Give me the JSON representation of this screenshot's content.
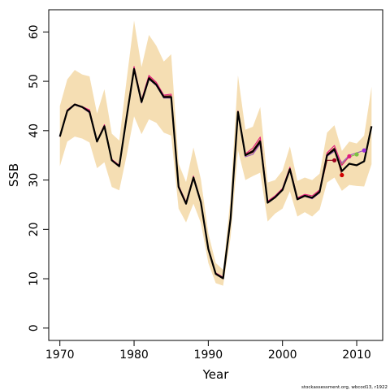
{
  "chart_data": {
    "type": "line",
    "title": "",
    "xlabel": "Year",
    "ylabel": "SSB",
    "footnote": "stockassessment.org, wbcod13, r1922",
    "xlim": [
      1968.5,
      2013.5
    ],
    "ylim": [
      -2.5,
      64.5
    ],
    "x_ticks": [
      1970,
      1980,
      1990,
      2000,
      2010
    ],
    "y_ticks": [
      0,
      10,
      20,
      30,
      40,
      50,
      60
    ],
    "years": [
      1970,
      1971,
      1972,
      1973,
      1974,
      1975,
      1976,
      1977,
      1978,
      1979,
      1980,
      1981,
      1982,
      1983,
      1984,
      1985,
      1986,
      1987,
      1988,
      1989,
      1990,
      1991,
      1992,
      1993,
      1994,
      1995,
      1996,
      1997,
      1998,
      1999,
      2000,
      2001,
      2002,
      2003,
      2004,
      2005,
      2006,
      2007,
      2008,
      2009,
      2010,
      2011,
      2012
    ],
    "series": [
      {
        "name": "SSB",
        "color": "#000000",
        "values": [
          38.8,
          44.0,
          45.3,
          44.8,
          43.8,
          37.8,
          40.9,
          34.0,
          32.8,
          42.8,
          52.5,
          45.8,
          50.6,
          49.3,
          46.8,
          46.8,
          28.6,
          25.2,
          30.5,
          25.5,
          16.0,
          11.0,
          10.1,
          22.2,
          43.8,
          35.0,
          35.8,
          37.8,
          25.4,
          26.5,
          28.0,
          32.2,
          26.1,
          26.8,
          26.4,
          27.6,
          35.0,
          36.2,
          31.8,
          33.3,
          33.0,
          33.8,
          40.9
        ]
      },
      {
        "name": "",
        "color": "#e0197d",
        "end_point_color": "#e0197d",
        "values": [
          38.9,
          44.2,
          45.4,
          44.9,
          44.2,
          37.9,
          41.2,
          34.2,
          33.0,
          43.0,
          53.0,
          46.2,
          51.2,
          49.8,
          47.2,
          47.4,
          28.9,
          25.5,
          30.8,
          25.7,
          16.2,
          11.2,
          10.3,
          22.4,
          44.0,
          35.3,
          36.5,
          38.7,
          25.7,
          26.8,
          28.3,
          32.6,
          26.4,
          27.1,
          26.8,
          28.0,
          35.5,
          37.0,
          33.0,
          34.8,
          null,
          null,
          null
        ]
      },
      {
        "name": "",
        "color": "#8b1a1a",
        "end_point_color": "#d00000",
        "values": [
          38.8,
          44.1,
          45.3,
          44.8,
          44.0,
          37.8,
          41.0,
          34.1,
          32.9,
          42.9,
          52.8,
          46.0,
          50.9,
          49.5,
          47.0,
          47.1,
          28.7,
          25.3,
          30.6,
          25.6,
          16.1,
          11.1,
          10.2,
          22.3,
          43.9,
          35.2,
          36.0,
          38.2,
          25.5,
          26.6,
          28.1,
          32.4,
          26.2,
          26.9,
          26.5,
          27.8,
          35.2,
          36.5,
          31.0,
          null,
          null,
          null,
          null
        ]
      },
      {
        "name": "",
        "color": "#9b59b6",
        "end_point_color": "#9b30d9",
        "values": [
          38.8,
          44.0,
          45.2,
          44.7,
          43.6,
          37.7,
          40.8,
          34.0,
          32.7,
          42.7,
          52.3,
          45.6,
          50.4,
          49.1,
          46.6,
          46.6,
          28.5,
          25.1,
          30.4,
          25.4,
          15.9,
          10.9,
          10.0,
          22.1,
          43.6,
          34.7,
          35.2,
          37.3,
          25.3,
          26.4,
          27.9,
          32.0,
          26.0,
          26.7,
          26.2,
          27.4,
          34.8,
          35.8,
          33.5,
          35.0,
          35.5,
          36.0,
          null
        ]
      },
      {
        "name": "",
        "color": "#7cc242",
        "end_point_color": "#7cc242",
        "values": [
          38.9,
          44.1,
          45.3,
          44.8,
          43.9,
          37.8,
          41.0,
          34.1,
          32.9,
          42.9,
          52.6,
          45.9,
          50.7,
          49.4,
          46.9,
          46.9,
          28.6,
          25.3,
          30.6,
          25.6,
          16.1,
          11.1,
          10.2,
          22.3,
          43.8,
          35.1,
          35.9,
          38.0,
          25.5,
          26.6,
          28.1,
          32.3,
          26.2,
          26.9,
          26.5,
          27.7,
          35.1,
          36.0,
          33.2,
          34.7,
          35.2,
          null,
          null
        ]
      },
      {
        "name": "",
        "color": "#8b0a1a",
        "end_point_color": "#a00020",
        "values": [
          38.8,
          44.0,
          45.2,
          44.8,
          43.8,
          37.8,
          40.9,
          34.0,
          32.8,
          42.8,
          52.5,
          45.8,
          50.6,
          49.3,
          46.8,
          46.8,
          28.6,
          25.2,
          30.5,
          25.5,
          16.0,
          11.0,
          10.1,
          22.2,
          43.8,
          35.0,
          35.6,
          37.6,
          25.4,
          26.5,
          28.0,
          32.2,
          26.1,
          26.8,
          26.4,
          27.6,
          34.0,
          34.0,
          null,
          null,
          null,
          null,
          null
        ]
      }
    ],
    "confidence_band": {
      "color": "#f5deb3",
      "lower": [
        32.8,
        37.8,
        38.8,
        38.4,
        37.6,
        32.4,
        33.6,
        28.6,
        27.9,
        35.0,
        42.9,
        39.3,
        42.3,
        41.6,
        39.6,
        39.0,
        24.2,
        21.4,
        25.2,
        21.3,
        13.2,
        9.1,
        8.6,
        18.4,
        36.0,
        30.0,
        30.8,
        31.5,
        21.6,
        23.2,
        24.2,
        27.7,
        22.6,
        23.5,
        22.6,
        24.0,
        29.5,
        30.5,
        27.8,
        29.0,
        28.8,
        28.7,
        33.2
      ],
      "upper": [
        45.0,
        50.4,
        52.3,
        51.4,
        51.0,
        43.5,
        48.4,
        39.4,
        38.0,
        50.4,
        62.3,
        52.9,
        59.4,
        57.2,
        54.0,
        55.5,
        33.3,
        29.6,
        36.6,
        30.2,
        19.2,
        13.2,
        11.8,
        26.5,
        51.2,
        40.2,
        40.8,
        44.8,
        29.5,
        30.0,
        31.9,
        36.8,
        29.8,
        30.5,
        30.0,
        31.3,
        39.6,
        41.1,
        35.9,
        37.8,
        37.4,
        39.0,
        48.9
      ]
    }
  }
}
